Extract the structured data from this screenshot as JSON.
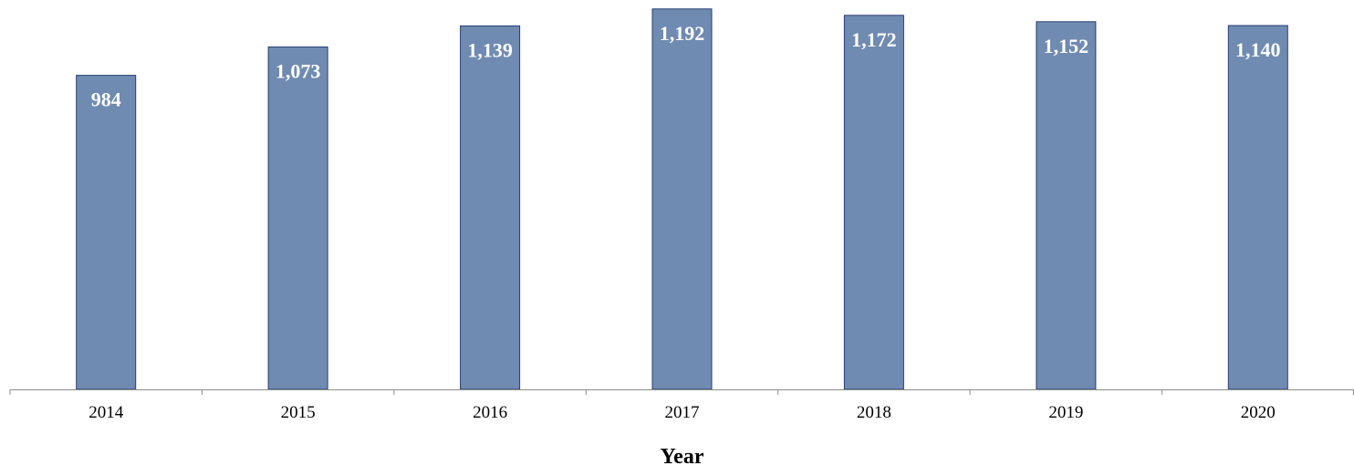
{
  "chart_data": {
    "type": "bar",
    "categories": [
      "2014",
      "2015",
      "2016",
      "2017",
      "2018",
      "2019",
      "2020"
    ],
    "values": [
      984,
      1073,
      1139,
      1192,
      1172,
      1152,
      1140
    ],
    "data_labels": [
      "984",
      "1,073",
      "1,139",
      "1,192",
      "1,172",
      "1,152",
      "1,140"
    ],
    "title": "",
    "xlabel": "Year",
    "ylabel": "",
    "ylim": [
      0,
      1200
    ],
    "grid": false,
    "legend": "none",
    "bar_color": "#6f8bb1",
    "bar_edge_color": "#243f73",
    "label_color": "#ffffff"
  }
}
